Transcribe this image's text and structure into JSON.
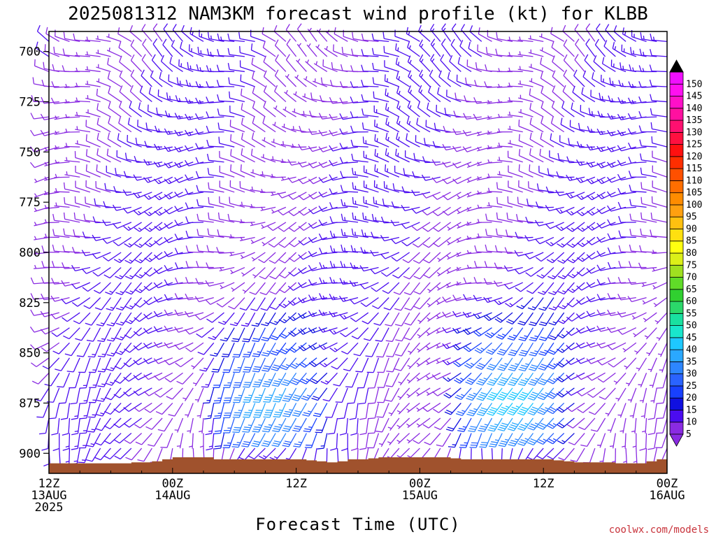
{
  "chart_data": {
    "type": "wind_barb_time_height",
    "title": "2025081312 NAM3KM forecast wind profile (kt) for KLBB",
    "xlabel": "Forecast Time (UTC)",
    "ylabel": "",
    "y_axis": {
      "units": "hPa",
      "ticks": [
        700,
        725,
        750,
        775,
        800,
        825,
        850,
        875,
        900
      ],
      "range": [
        690,
        910
      ]
    },
    "x_axis": {
      "units": "forecast hours",
      "range": [
        0,
        60
      ],
      "ticks": [
        {
          "hour": 0,
          "labels": [
            "12Z",
            "13AUG",
            "2025"
          ]
        },
        {
          "hour": 12,
          "labels": [
            "00Z",
            "14AUG"
          ]
        },
        {
          "hour": 24,
          "labels": [
            "12Z"
          ]
        },
        {
          "hour": 36,
          "labels": [
            "00Z",
            "15AUG"
          ]
        },
        {
          "hour": 48,
          "labels": [
            "12Z"
          ]
        },
        {
          "hour": 60,
          "labels": [
            "00Z",
            "16AUG"
          ]
        }
      ]
    },
    "colorbar": {
      "units": "kt",
      "levels": [
        5,
        10,
        15,
        20,
        25,
        30,
        35,
        40,
        45,
        50,
        55,
        60,
        65,
        70,
        75,
        80,
        85,
        90,
        95,
        100,
        105,
        110,
        115,
        120,
        125,
        130,
        135,
        140,
        145,
        150
      ],
      "colors": [
        "#8a2be2",
        "#4b0cf0",
        "#1010e0",
        "#1840ff",
        "#2a63ff",
        "#2d86ff",
        "#2aa8ff",
        "#1ec8ff",
        "#19e6cc",
        "#19e0a0",
        "#2bd86a",
        "#30d030",
        "#60dc28",
        "#a0e020",
        "#dcf018",
        "#ffff10",
        "#ffe010",
        "#ffc010",
        "#ffa010",
        "#ff8c00",
        "#ff6e00",
        "#ff5000",
        "#ff2e00",
        "#ff1010",
        "#ff1040",
        "#ff1070",
        "#ff10a0",
        "#ff10c8",
        "#ff10f0",
        "#f010ff"
      ],
      "extend_low_color": "#8a2be2",
      "extend_high_color": "#000000"
    },
    "terrain_color": "#a0522d",
    "terrain_surface_hpa": [
      905,
      905,
      905,
      905,
      905,
      905,
      905,
      905,
      904.5,
      904.5,
      904,
      903,
      902,
      902,
      902,
      902,
      903,
      903,
      903,
      903,
      903,
      903,
      903,
      903,
      903,
      903.5,
      904,
      904.5,
      904,
      903,
      903,
      902.5,
      902,
      902,
      902,
      902,
      902,
      902,
      902,
      902.5,
      903,
      903,
      903,
      903,
      903,
      903,
      903,
      903,
      903,
      903.5,
      904,
      904.5,
      904.5,
      904.5,
      904.5,
      905,
      905,
      905,
      904,
      903,
      903
    ],
    "pressure_levels": [
      695,
      702.5,
      710,
      717.5,
      725,
      732.5,
      740,
      747.5,
      755,
      762.5,
      770,
      777.5,
      785,
      792.5,
      800,
      807.5,
      815,
      822.5,
      830,
      837.5,
      845,
      852.5,
      860,
      867.5,
      875,
      882.5,
      890,
      897.5,
      905
    ],
    "wind_summary": {
      "upper_levels_700_800": {
        "direction_deg": 300,
        "speed_kt": 10
      },
      "low_levels_night_1": {
        "hours": [
          15,
          28
        ],
        "levels_hpa": [
          820,
          895
        ],
        "direction_deg": 200,
        "speed_kt_max": 40
      },
      "low_levels_night_2": {
        "hours": [
          39,
          52
        ],
        "levels_hpa": [
          820,
          895
        ],
        "direction_deg": 220,
        "speed_kt_max": 45
      },
      "daytime_mixed": {
        "direction_deg": 200,
        "speed_kt": 10
      }
    }
  },
  "credit": "coolwx.com/models"
}
